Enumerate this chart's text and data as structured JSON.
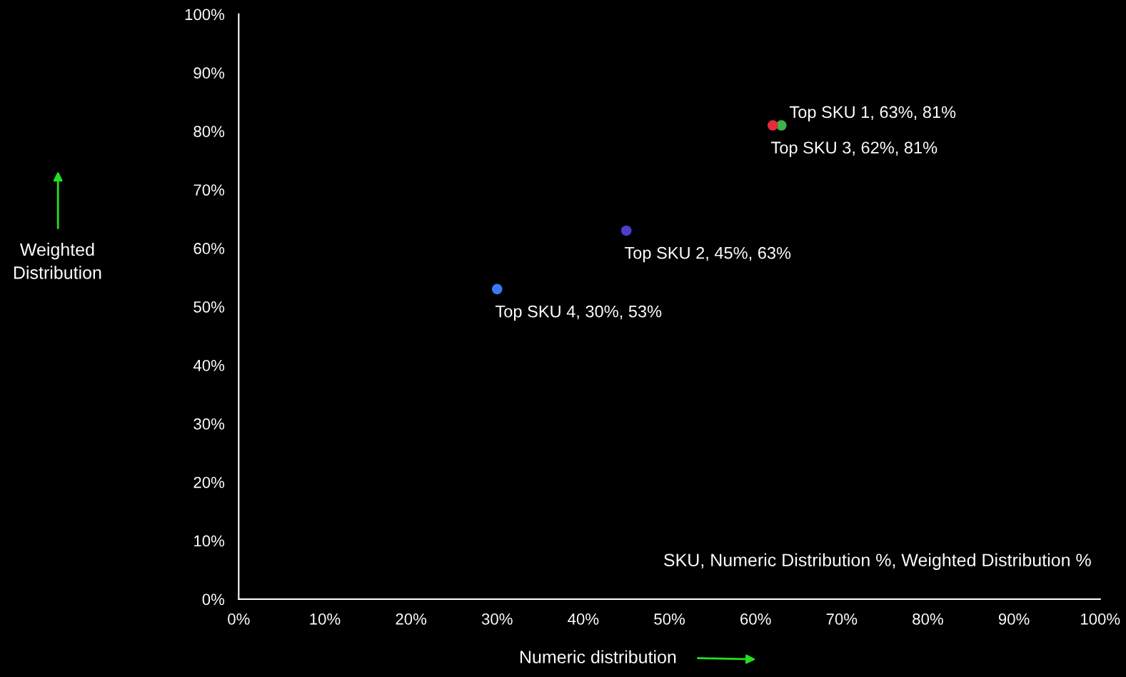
{
  "chart_data": {
    "type": "scatter",
    "xlabel": "Numeric distribution",
    "ylabel": "Weighted\nDistribution",
    "x": [
      63,
      45,
      62,
      30
    ],
    "values": [
      81,
      63,
      81,
      53
    ],
    "colors": [
      "#3cb44b",
      "#4b3fd0",
      "#e8283c",
      "#3a7bf0"
    ],
    "value_labels": [
      "Top SKU 1, 63%, 81%",
      "Top SKU 2, 45%, 63%",
      "Top SKU 3, 62%, 81%",
      "Top SKU 4, 30%, 53%"
    ],
    "marker": "circle",
    "xlim": [
      0,
      100
    ],
    "ylim": [
      0,
      100
    ],
    "xticks": [
      {
        "value": 0,
        "label": "0%"
      },
      {
        "value": 10,
        "label": "10%"
      },
      {
        "value": 20,
        "label": "20%"
      },
      {
        "value": 30,
        "label": "30%"
      },
      {
        "value": 40,
        "label": "40%"
      },
      {
        "value": 50,
        "label": "50%"
      },
      {
        "value": 60,
        "label": "60%"
      },
      {
        "value": 70,
        "label": "70%"
      },
      {
        "value": 80,
        "label": "80%"
      },
      {
        "value": 90,
        "label": "90%"
      },
      {
        "value": 100,
        "label": "100%"
      }
    ],
    "yticks": [
      {
        "value": 0,
        "label": "0%"
      },
      {
        "value": 10,
        "label": "10%"
      },
      {
        "value": 20,
        "label": "20%"
      },
      {
        "value": 30,
        "label": "30%"
      },
      {
        "value": 40,
        "label": "40%"
      },
      {
        "value": 50,
        "label": "50%"
      },
      {
        "value": 60,
        "label": "60%"
      },
      {
        "value": 70,
        "label": "70%"
      },
      {
        "value": 80,
        "label": "80%"
      },
      {
        "value": 90,
        "label": "90%"
      },
      {
        "value": 100,
        "label": "100%"
      }
    ],
    "grid": false,
    "legend": false,
    "annotations": [
      "SKU, Numeric Distribution %, Weighted Distribution %"
    ]
  }
}
